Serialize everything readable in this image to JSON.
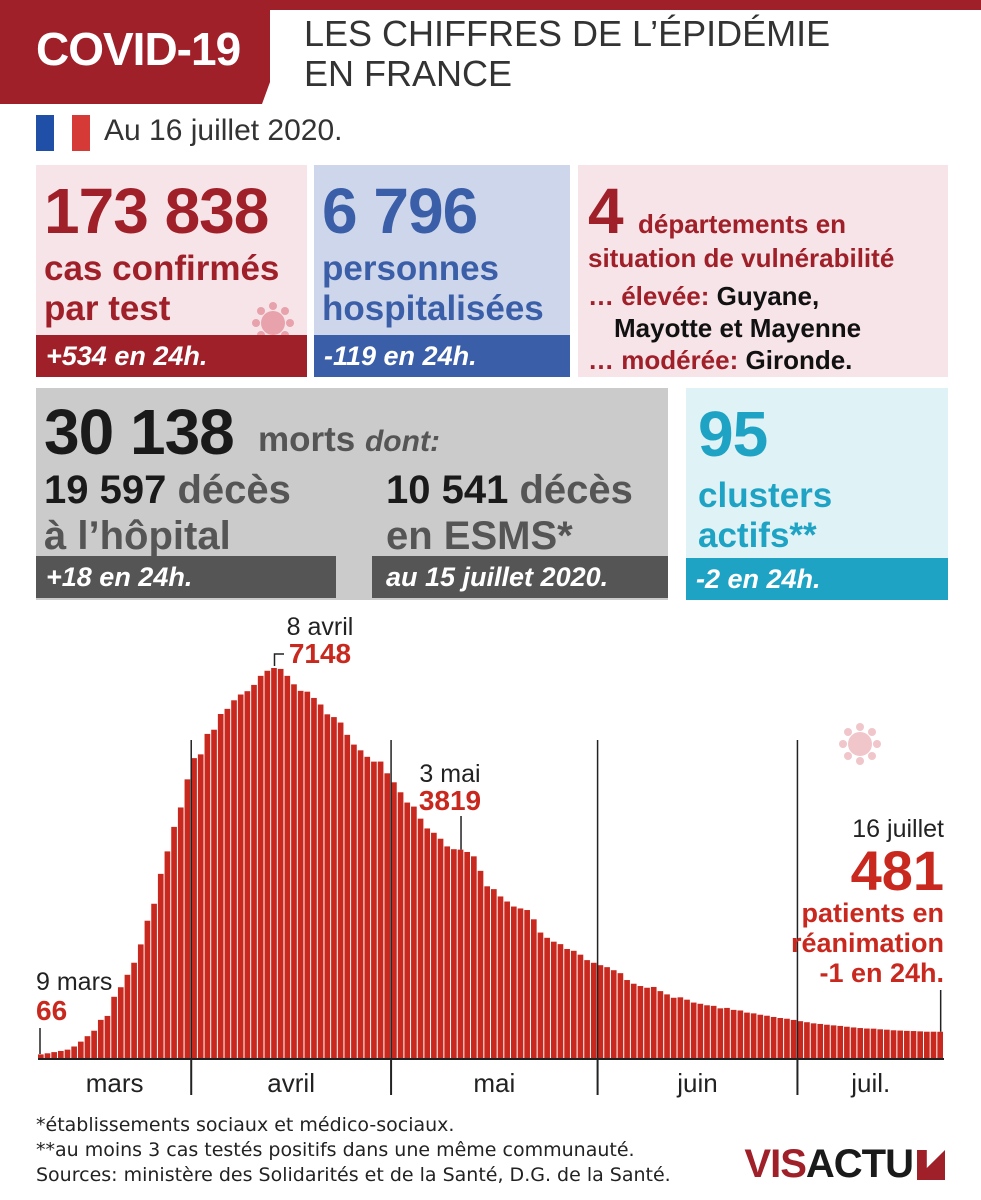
{
  "header": {
    "title": "COVID-19",
    "subtitle_line1": "LES CHIFFRES DE L’ÉPIDÉMIE",
    "subtitle_line2": "EN FRANCE",
    "date": "Au 16 juillet 2020."
  },
  "colors": {
    "red_dark": "#a0202a",
    "red_bar": "#c8281e",
    "pink_bg": "#f7e4e8",
    "blue": "#3b5ea8",
    "blue_bg": "#cdd6ea",
    "grey_bg": "#cbcbcb",
    "grey_dark": "#555555",
    "cyan": "#1fa3c4",
    "cyan_bg": "#dff2f5",
    "flag_blue": "#1f4fa6",
    "flag_red": "#d63a36"
  },
  "stats": {
    "cases": {
      "number": "173 838",
      "label_line1": "cas confirmés",
      "label_line2": "par test",
      "delta": "+534 en 24h."
    },
    "hospital": {
      "number": "6 796",
      "label_line1": "personnes",
      "label_line2": "hospitalisées",
      "delta": "-119 en 24h."
    },
    "departments": {
      "number": "4",
      "label_line1": "départements en",
      "label_line2": "situation de vulnérabilité",
      "high_label": "… élevée:",
      "high_value_line1": "Guyane,",
      "high_value_line2": "Mayotte et Mayenne",
      "moderate_label": "… modérée:",
      "moderate_value": "Gironde."
    },
    "deaths": {
      "number": "30 138",
      "label": "morts",
      "dont": "dont:",
      "hospital_number": "19 597",
      "hospital_label1": "décès",
      "hospital_label2": "à l’hôpital",
      "hospital_delta": "+18 en 24h.",
      "esms_number": "10 541",
      "esms_label1": "décès",
      "esms_label2": "en ESMS*",
      "esms_delta": "au 15 juillet 2020."
    },
    "clusters": {
      "number": "95",
      "label_line1": "clusters",
      "label_line2": "actifs**",
      "delta": "-2 en 24h."
    }
  },
  "chart_data": {
    "type": "bar",
    "series_name": "patients en réanimation",
    "x_start": "2020-03-09",
    "x_end": "2020-07-16",
    "months": [
      "mars",
      "avril",
      "mai",
      "juin",
      "juil."
    ],
    "ylim": [
      0,
      7500
    ],
    "values": [
      66,
      86,
      108,
      129,
      153,
      211,
      300,
      400,
      500,
      699,
      771,
      1122,
      1297,
      1525,
      1746,
      2082,
      2516,
      2827,
      3375,
      3787,
      4236,
      4592,
      5107,
      5496,
      5565,
      5940,
      6017,
      6305,
      6399,
      6556,
      6662,
      6723,
      6838,
      7004,
      7097,
      7148,
      7131,
      7004,
      6849,
      6729,
      6714,
      6599,
      6479,
      6299,
      6248,
      6148,
      5923,
      5744,
      5639,
      5520,
      5432,
      5433,
      5218,
      5053,
      4870,
      4682,
      4608,
      4387,
      4207,
      4128,
      4019,
      3878,
      3827,
      3819,
      3776,
      3696,
      3430,
      3147,
      3095,
      2961,
      2868,
      2776,
      2741,
      2712,
      2542,
      2299,
      2203,
      2132,
      2087,
      1998,
      1965,
      1894,
      1794,
      1745,
      1701,
      1665,
      1609,
      1555,
      1429,
      1361,
      1319,
      1288,
      1302,
      1226,
      1166,
      1104,
      1112,
      1069,
      1016,
      994,
      966,
      956,
      910,
      918,
      882,
      871,
      832,
      818,
      793,
      775,
      752,
      733,
      720,
      698,
      675,
      656,
      635,
      624,
      610,
      598,
      588,
      573,
      560,
      549,
      540,
      538,
      526,
      519,
      508,
      503,
      497,
      494,
      488,
      482,
      482,
      481
    ],
    "annotations": [
      {
        "date": "9 mars",
        "value": "66"
      },
      {
        "date": "8 avril",
        "value": "7148"
      },
      {
        "date": "3 mai",
        "value": "3819"
      },
      {
        "date": "16 juillet",
        "value": "481",
        "text_line1": "patients en",
        "text_line2": "réanimation",
        "text_line3": "-1 en 24h."
      }
    ]
  },
  "footnotes": {
    "line1": "*établissements sociaux et médico-sociaux.",
    "line2": "**au moins 3 cas testés positifs dans une même communauté.",
    "line3": "Sources: ministère des Solidarités et de la Santé, D.G. de la Santé."
  },
  "logo": {
    "part1": "VIS",
    "part2": "ACTU"
  }
}
